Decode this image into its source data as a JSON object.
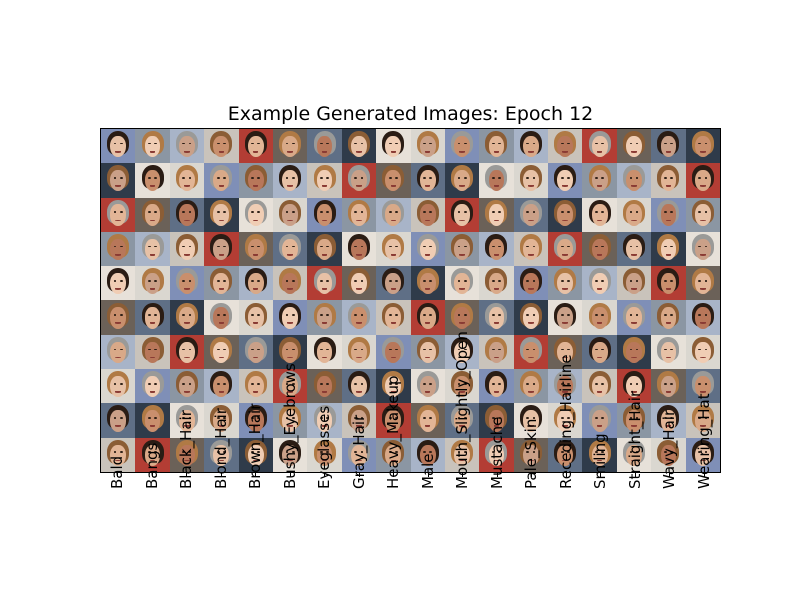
{
  "title": "Example Generated Images: Epoch 12",
  "grid": {
    "rows": 10,
    "columns": 18
  },
  "column_labels": [
    "Bald",
    "Bangs",
    "Black_Hair",
    "Blond_Hair",
    "Brown_Hair",
    "Bushy_Eyebrows",
    "Eyeglasses",
    "Gray_Hair",
    "Heavy_Makeup",
    "Male",
    "Mouth_Slightly_Open",
    "Mustache",
    "Pale_Skin",
    "Receding_Hairline",
    "Smiling",
    "Straight_Hair",
    "Wavy_Hair",
    "Wearing_Hat"
  ],
  "palette": {
    "skin": [
      "#e7c1a6",
      "#d9a988",
      "#c98f6d",
      "#f0cdb4",
      "#b8775a",
      "#e2b596",
      "#caa088"
    ],
    "hair": [
      "#2a1c14",
      "#5a3a24",
      "#8b5d35",
      "#d6b77a",
      "#9a9a98",
      "#3b2a20",
      "#b07a45",
      "#1b1410"
    ],
    "bg": [
      "#7f8fb7",
      "#c9c3bb",
      "#5f6f86",
      "#dad7d0",
      "#a8b4c8",
      "#6b6158",
      "#e7e1d9",
      "#8b96a3",
      "#b33d34",
      "#2f3b4a"
    ]
  }
}
